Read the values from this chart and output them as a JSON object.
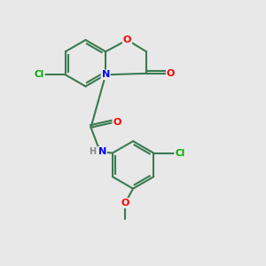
{
  "bg_color": "#e8e8e8",
  "bond_color": "#3a7a50",
  "atom_colors": {
    "O": "#ff0000",
    "N": "#0000ff",
    "Cl": "#00aa00",
    "H": "#888888",
    "C": "#3a7a50"
  }
}
